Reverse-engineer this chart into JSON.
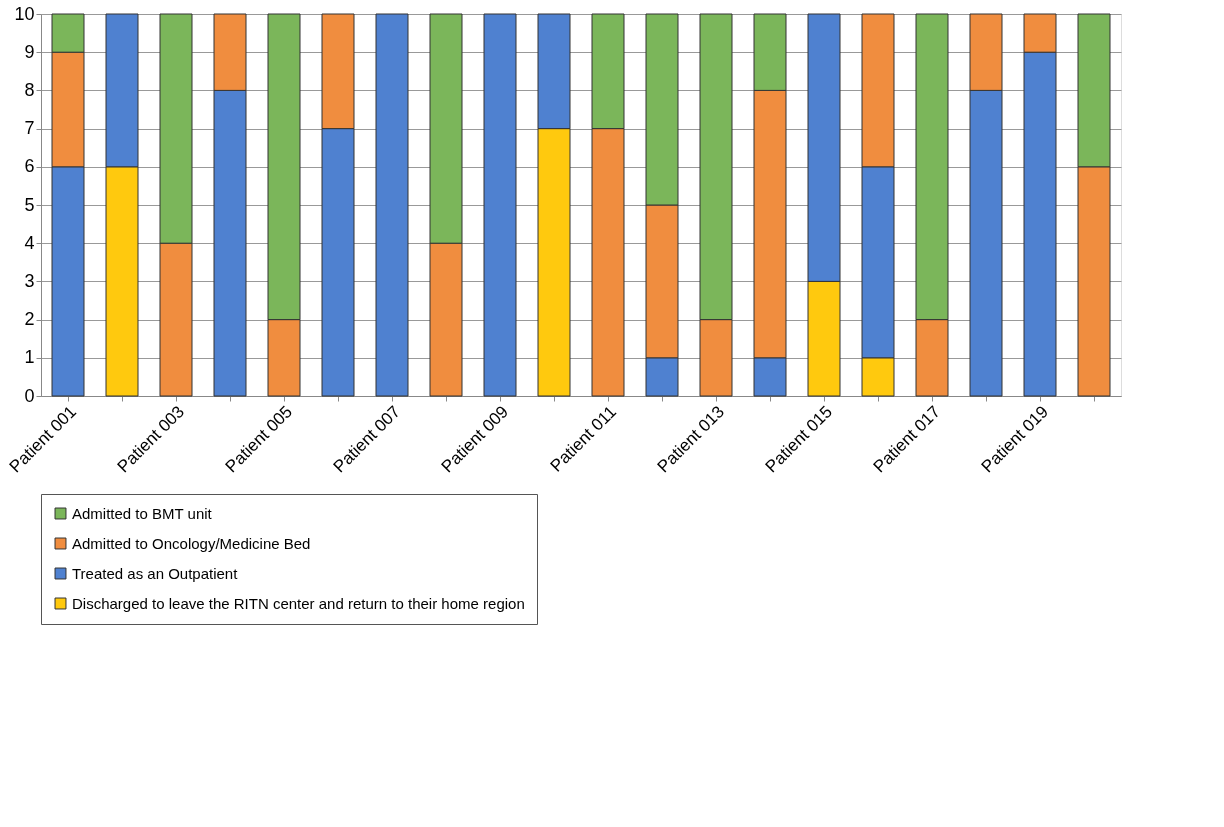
{
  "chart_data": {
    "type": "bar",
    "stacked": true,
    "categories": [
      "Patient 001",
      null,
      "Patient 003",
      null,
      "Patient 005",
      null,
      "Patient 007",
      null,
      "Patient 009",
      null,
      "Patient 011",
      null,
      "Patient 013",
      null,
      "Patient 015",
      null,
      "Patient 017",
      null,
      "Patient 019",
      null
    ],
    "series": [
      {
        "name": "Discharged to leave the RITN center and return to their home region",
        "color": "#ffc90e",
        "values": [
          0,
          6,
          0,
          0,
          0,
          0,
          0,
          0,
          0,
          7,
          0,
          0,
          0,
          0,
          3,
          1,
          0,
          0,
          0,
          0
        ]
      },
      {
        "name": "Treated as an Outpatient",
        "color": "#4f81d0",
        "values": [
          6,
          4,
          0,
          8,
          0,
          7,
          10,
          0,
          10,
          3,
          0,
          1,
          0,
          1,
          7,
          5,
          0,
          8,
          9,
          0
        ]
      },
      {
        "name": "Admitted to Oncology/Medicine Bed",
        "color": "#f08d3f",
        "values": [
          3,
          0,
          4,
          2,
          2,
          3,
          0,
          4,
          0,
          0,
          7,
          4,
          2,
          7,
          0,
          4,
          2,
          2,
          1,
          6
        ]
      },
      {
        "name": "Admitted to BMT unit",
        "color": "#7bb65a",
        "values": [
          1,
          0,
          6,
          0,
          8,
          0,
          0,
          6,
          0,
          0,
          3,
          5,
          8,
          2,
          0,
          0,
          8,
          0,
          0,
          4
        ]
      }
    ],
    "ylim": [
      0,
      10
    ],
    "yticks": [
      0,
      1,
      2,
      3,
      4,
      5,
      6,
      7,
      8,
      9,
      10
    ],
    "grid": "y",
    "legend": "bottom"
  }
}
